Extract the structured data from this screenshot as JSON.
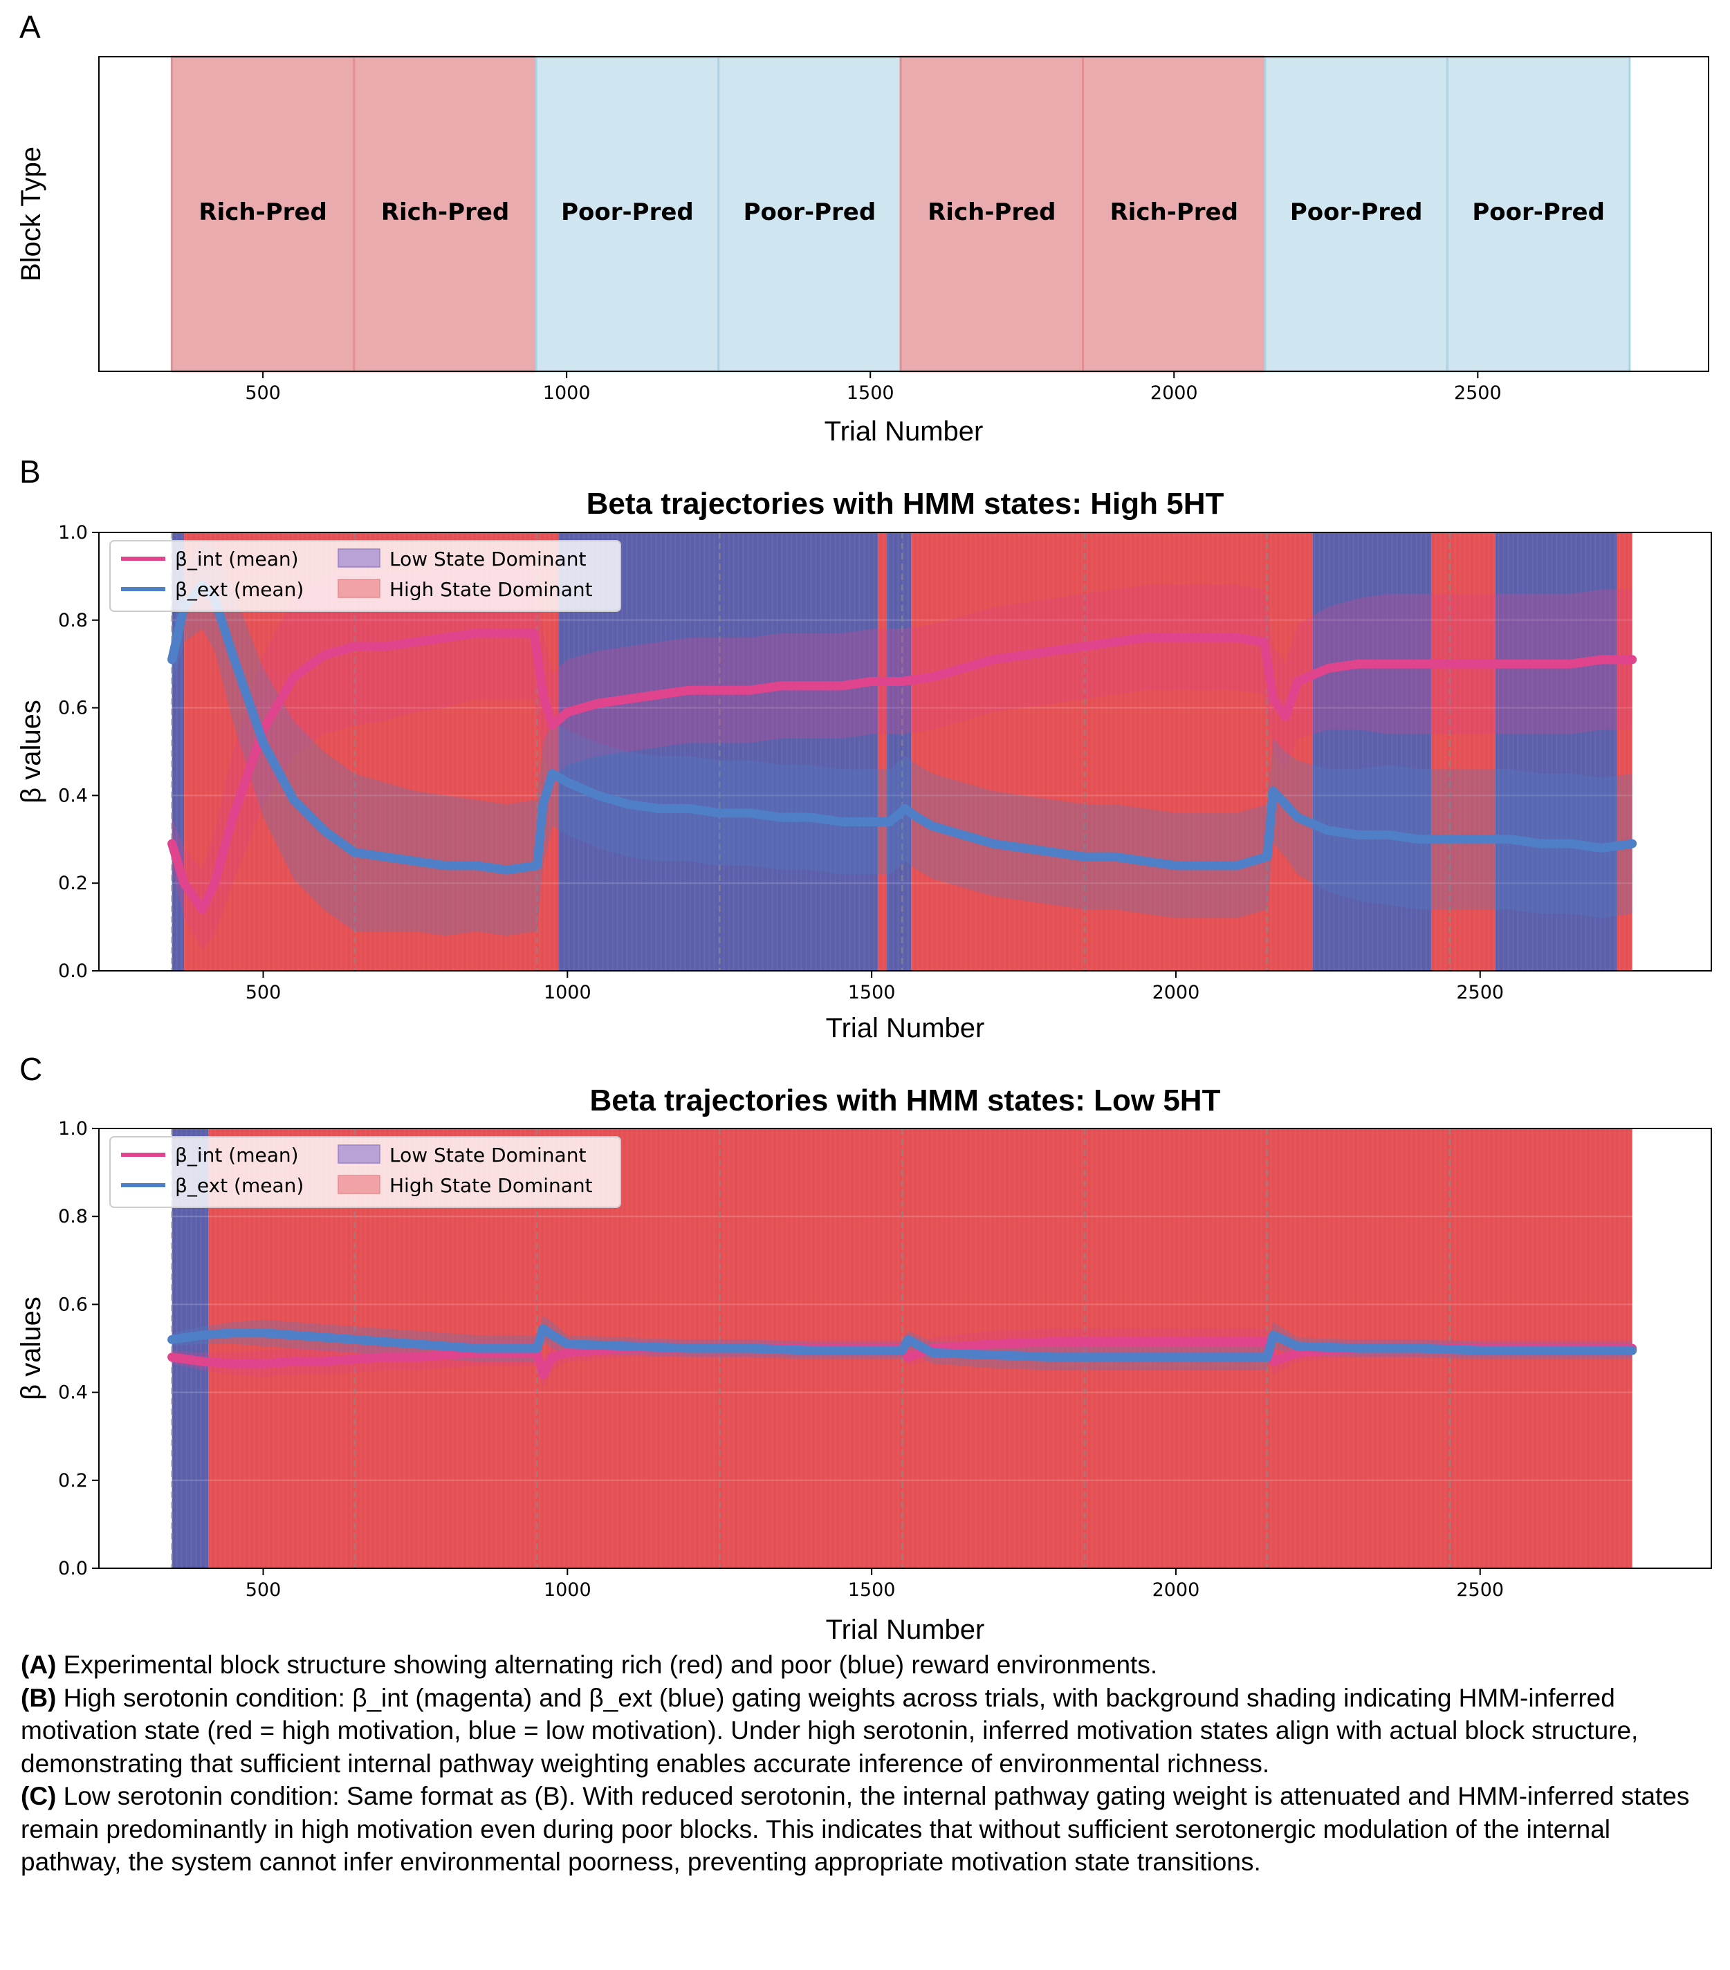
{
  "panel_a": {
    "letter": "A",
    "chart_data": {
      "type": "bar",
      "title": "",
      "xlabel": "Trial Number",
      "ylabel": "Block Type",
      "xlim": [
        230,
        2880
      ],
      "xticks": [
        500,
        1000,
        1500,
        2000,
        2500
      ],
      "blocks": [
        {
          "label": "Rich-Pred",
          "start": 350,
          "end": 650,
          "kind": "rich"
        },
        {
          "label": "Rich-Pred",
          "start": 650,
          "end": 950,
          "kind": "rich"
        },
        {
          "label": "Poor-Pred",
          "start": 950,
          "end": 1250,
          "kind": "poor"
        },
        {
          "label": "Poor-Pred",
          "start": 1250,
          "end": 1550,
          "kind": "poor"
        },
        {
          "label": "Rich-Pred",
          "start": 1550,
          "end": 1850,
          "kind": "rich"
        },
        {
          "label": "Rich-Pred",
          "start": 1850,
          "end": 2150,
          "kind": "rich"
        },
        {
          "label": "Poor-Pred",
          "start": 2150,
          "end": 2450,
          "kind": "poor"
        },
        {
          "label": "Poor-Pred",
          "start": 2450,
          "end": 2750,
          "kind": "poor"
        }
      ],
      "colors": {
        "rich": "#eaabae",
        "rich_edge": "#e28e93",
        "poor": "#cfe5ef",
        "poor_edge": "#aad3e3"
      }
    }
  },
  "panel_b": {
    "letter": "B",
    "chart_data": {
      "type": "line",
      "title": "Beta trajectories with HMM states: High 5HT",
      "xlabel": "Trial Number",
      "ylabel": "β values",
      "xlim": [
        230,
        2880
      ],
      "ylim": [
        0,
        1
      ],
      "xticks": [
        500,
        1000,
        1500,
        2000,
        2500
      ],
      "yticks": [
        "0.0",
        "0.2",
        "0.4",
        "0.6",
        "0.8",
        "1.0"
      ],
      "legend": {
        "placement": "top-left",
        "entries": [
          "β_int (mean)",
          "β_ext (mean)",
          "Low State Dominant",
          "High State Dominant"
        ]
      },
      "block_boundaries": [
        350,
        650,
        950,
        1250,
        1550,
        1850,
        2150,
        2450
      ],
      "state_segments": [
        {
          "start": 350,
          "end": 370,
          "state": "low"
        },
        {
          "start": 370,
          "end": 985,
          "state": "high"
        },
        {
          "start": 985,
          "end": 1510,
          "state": "low"
        },
        {
          "start": 1510,
          "end": 1525,
          "state": "high"
        },
        {
          "start": 1525,
          "end": 1565,
          "state": "low"
        },
        {
          "start": 1565,
          "end": 2225,
          "state": "high"
        },
        {
          "start": 2225,
          "end": 2420,
          "state": "low"
        },
        {
          "start": 2420,
          "end": 2525,
          "state": "high"
        },
        {
          "start": 2525,
          "end": 2725,
          "state": "low"
        },
        {
          "start": 2725,
          "end": 2750,
          "state": "high"
        }
      ],
      "series": [
        {
          "name": "β_int (mean)",
          "color": "#e0448c",
          "x": [
            350,
            370,
            400,
            420,
            450,
            500,
            550,
            600,
            650,
            700,
            750,
            800,
            850,
            900,
            945,
            960,
            975,
            1000,
            1050,
            1100,
            1150,
            1200,
            1250,
            1300,
            1350,
            1400,
            1450,
            1500,
            1550,
            1600,
            1650,
            1700,
            1750,
            1800,
            1850,
            1900,
            1950,
            2000,
            2050,
            2100,
            2145,
            2160,
            2180,
            2200,
            2250,
            2300,
            2350,
            2400,
            2450,
            2500,
            2550,
            2600,
            2650,
            2700,
            2750
          ],
          "y": [
            0.29,
            0.2,
            0.14,
            0.2,
            0.35,
            0.55,
            0.67,
            0.72,
            0.74,
            0.74,
            0.75,
            0.76,
            0.77,
            0.77,
            0.77,
            0.63,
            0.56,
            0.59,
            0.61,
            0.62,
            0.63,
            0.64,
            0.64,
            0.64,
            0.65,
            0.65,
            0.65,
            0.66,
            0.66,
            0.67,
            0.69,
            0.71,
            0.72,
            0.73,
            0.74,
            0.75,
            0.76,
            0.76,
            0.76,
            0.76,
            0.75,
            0.62,
            0.58,
            0.66,
            0.69,
            0.7,
            0.7,
            0.7,
            0.7,
            0.7,
            0.7,
            0.7,
            0.7,
            0.71,
            0.71
          ],
          "band_half_width": [
            0.06,
            0.08,
            0.09,
            0.12,
            0.15,
            0.17,
            0.18,
            0.18,
            0.18,
            0.17,
            0.16,
            0.16,
            0.15,
            0.15,
            0.15,
            0.14,
            0.12,
            0.12,
            0.12,
            0.12,
            0.12,
            0.12,
            0.12,
            0.12,
            0.12,
            0.12,
            0.12,
            0.12,
            0.12,
            0.12,
            0.12,
            0.12,
            0.12,
            0.12,
            0.12,
            0.12,
            0.12,
            0.12,
            0.12,
            0.12,
            0.12,
            0.12,
            0.12,
            0.13,
            0.14,
            0.15,
            0.16,
            0.16,
            0.16,
            0.16,
            0.16,
            0.16,
            0.16,
            0.16,
            0.16
          ]
        },
        {
          "name": "β_ext (mean)",
          "color": "#4f7fc6",
          "x": [
            350,
            370,
            400,
            420,
            450,
            500,
            550,
            600,
            650,
            700,
            750,
            800,
            850,
            900,
            950,
            960,
            975,
            1000,
            1050,
            1100,
            1150,
            1200,
            1250,
            1300,
            1350,
            1400,
            1450,
            1500,
            1530,
            1555,
            1575,
            1600,
            1650,
            1700,
            1750,
            1800,
            1850,
            1900,
            1950,
            2000,
            2050,
            2100,
            2150,
            2160,
            2180,
            2200,
            2250,
            2300,
            2350,
            2400,
            2450,
            2500,
            2550,
            2600,
            2650,
            2700,
            2750
          ],
          "y": [
            0.71,
            0.83,
            0.88,
            0.85,
            0.72,
            0.52,
            0.39,
            0.32,
            0.27,
            0.26,
            0.25,
            0.24,
            0.24,
            0.23,
            0.24,
            0.38,
            0.45,
            0.43,
            0.4,
            0.38,
            0.37,
            0.37,
            0.36,
            0.36,
            0.35,
            0.35,
            0.34,
            0.34,
            0.34,
            0.37,
            0.35,
            0.33,
            0.31,
            0.29,
            0.28,
            0.27,
            0.26,
            0.26,
            0.25,
            0.24,
            0.24,
            0.24,
            0.26,
            0.41,
            0.38,
            0.35,
            0.32,
            0.31,
            0.31,
            0.3,
            0.3,
            0.3,
            0.3,
            0.29,
            0.29,
            0.28,
            0.29
          ],
          "band_half_width": [
            0.06,
            0.08,
            0.1,
            0.12,
            0.15,
            0.17,
            0.18,
            0.18,
            0.18,
            0.17,
            0.16,
            0.16,
            0.15,
            0.15,
            0.15,
            0.14,
            0.12,
            0.12,
            0.12,
            0.12,
            0.12,
            0.12,
            0.12,
            0.12,
            0.12,
            0.12,
            0.12,
            0.12,
            0.12,
            0.12,
            0.12,
            0.12,
            0.12,
            0.12,
            0.12,
            0.12,
            0.12,
            0.12,
            0.12,
            0.12,
            0.12,
            0.12,
            0.12,
            0.12,
            0.12,
            0.13,
            0.14,
            0.15,
            0.16,
            0.16,
            0.16,
            0.16,
            0.16,
            0.16,
            0.16,
            0.16,
            0.16
          ]
        }
      ],
      "colors": {
        "high_state": "#e3474b",
        "low_state": "#5357a6"
      }
    }
  },
  "panel_c": {
    "letter": "C",
    "chart_data": {
      "type": "line",
      "title": "Beta trajectories with HMM states: Low 5HT",
      "xlabel": "Trial Number",
      "ylabel": "β values",
      "xlim": [
        230,
        2880
      ],
      "ylim": [
        0,
        1
      ],
      "xticks": [
        500,
        1000,
        1500,
        2000,
        2500
      ],
      "yticks": [
        "0.0",
        "0.2",
        "0.4",
        "0.6",
        "0.8",
        "1.0"
      ],
      "legend": {
        "placement": "top-left",
        "entries": [
          "β_int (mean)",
          "β_ext (mean)",
          "Low State Dominant",
          "High State Dominant"
        ]
      },
      "block_boundaries": [
        350,
        650,
        950,
        1250,
        1550,
        1850,
        2150,
        2450
      ],
      "state_segments": [
        {
          "start": 350,
          "end": 410,
          "state": "low"
        },
        {
          "start": 410,
          "end": 2750,
          "state": "high"
        }
      ],
      "series": [
        {
          "name": "β_int (mean)",
          "color": "#e0448c",
          "x": [
            350,
            400,
            450,
            500,
            550,
            600,
            650,
            700,
            750,
            800,
            850,
            900,
            950,
            960,
            975,
            1000,
            1100,
            1200,
            1300,
            1400,
            1500,
            1550,
            1560,
            1600,
            1700,
            1800,
            1900,
            2000,
            2100,
            2150,
            2160,
            2200,
            2300,
            2400,
            2500,
            2600,
            2700,
            2750
          ],
          "y": [
            0.48,
            0.47,
            0.465,
            0.465,
            0.47,
            0.47,
            0.475,
            0.48,
            0.48,
            0.485,
            0.49,
            0.49,
            0.49,
            0.44,
            0.48,
            0.49,
            0.5,
            0.5,
            0.5,
            0.5,
            0.5,
            0.5,
            0.48,
            0.5,
            0.51,
            0.515,
            0.515,
            0.515,
            0.515,
            0.515,
            0.47,
            0.49,
            0.5,
            0.5,
            0.5,
            0.5,
            0.5,
            0.5
          ],
          "band_half_width": [
            0.015,
            0.02,
            0.025,
            0.03,
            0.03,
            0.03,
            0.03,
            0.03,
            0.03,
            0.03,
            0.03,
            0.03,
            0.03,
            0.03,
            0.03,
            0.02,
            0.02,
            0.02,
            0.02,
            0.02,
            0.02,
            0.02,
            0.02,
            0.025,
            0.03,
            0.03,
            0.03,
            0.03,
            0.03,
            0.03,
            0.03,
            0.02,
            0.02,
            0.02,
            0.02,
            0.02,
            0.02,
            0.02
          ]
        },
        {
          "name": "β_ext (mean)",
          "color": "#4f7fc6",
          "x": [
            350,
            400,
            450,
            500,
            550,
            600,
            650,
            700,
            750,
            800,
            850,
            900,
            950,
            960,
            975,
            1000,
            1100,
            1200,
            1300,
            1400,
            1500,
            1550,
            1560,
            1600,
            1700,
            1800,
            1900,
            2000,
            2100,
            2150,
            2160,
            2200,
            2300,
            2400,
            2500,
            2600,
            2700,
            2750
          ],
          "y": [
            0.52,
            0.53,
            0.535,
            0.535,
            0.53,
            0.525,
            0.52,
            0.515,
            0.51,
            0.505,
            0.5,
            0.5,
            0.5,
            0.545,
            0.53,
            0.51,
            0.505,
            0.5,
            0.5,
            0.495,
            0.495,
            0.495,
            0.52,
            0.49,
            0.485,
            0.48,
            0.48,
            0.48,
            0.48,
            0.48,
            0.53,
            0.505,
            0.5,
            0.5,
            0.495,
            0.495,
            0.495,
            0.495
          ],
          "band_half_width": [
            0.015,
            0.02,
            0.025,
            0.03,
            0.03,
            0.03,
            0.03,
            0.03,
            0.03,
            0.03,
            0.03,
            0.03,
            0.03,
            0.03,
            0.03,
            0.02,
            0.02,
            0.02,
            0.02,
            0.02,
            0.02,
            0.02,
            0.02,
            0.025,
            0.03,
            0.03,
            0.03,
            0.03,
            0.03,
            0.03,
            0.03,
            0.02,
            0.02,
            0.02,
            0.02,
            0.02,
            0.02,
            0.02
          ]
        }
      ],
      "colors": {
        "high_state": "#e3474b",
        "low_state": "#5357a6"
      }
    }
  },
  "caption": {
    "a_label": "(A)",
    "a_text": " Experimental block structure showing alternating rich (red) and poor (blue) reward environments.",
    "b_label": "(B)",
    "b_text": " High serotonin condition: β_int (magenta) and β_ext (blue) gating weights across trials, with background shading indicating HMM-inferred motivation state (red = high motivation, blue = low motivation). Under high serotonin, inferred motivation states align with actual block structure, demonstrating that sufficient internal pathway weighting enables accurate inference of environmental richness.",
    "c_label": "(C)",
    "c_text": " Low serotonin condition: Same format as (B). With reduced serotonin, the internal pathway gating weight is attenuated and HMM-inferred states remain predominantly in high motivation even during poor blocks. This indicates that without sufficient serotonergic modulation of the internal pathway, the system cannot infer environmental poorness, preventing appropriate motivation state transitions."
  }
}
